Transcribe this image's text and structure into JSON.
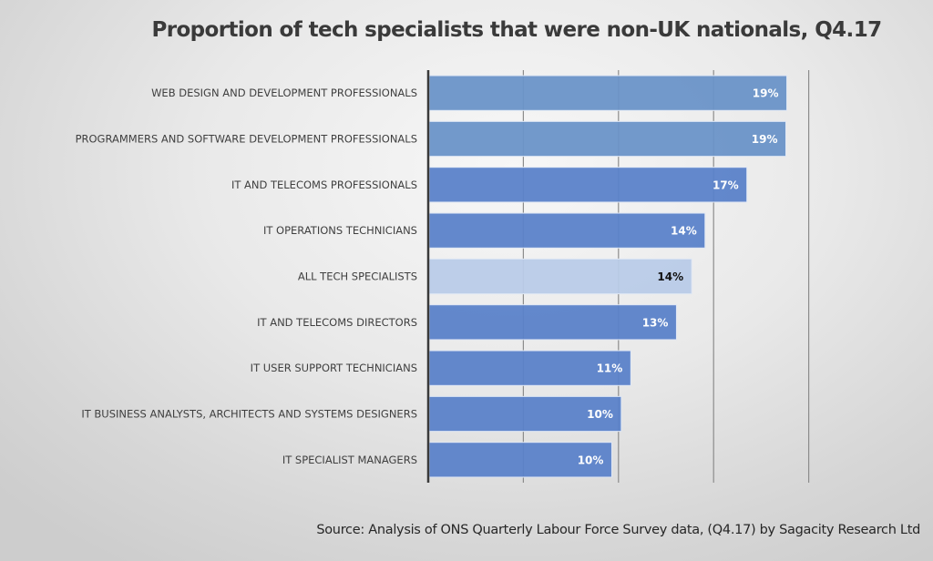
{
  "chart_data": {
    "type": "bar",
    "orientation": "horizontal",
    "title": "Proportion of tech specialists that were non-UK nationals, Q4.17",
    "xlabel": "",
    "ylabel": "",
    "xlim": [
      0,
      25
    ],
    "x_gridlines": [
      5,
      10,
      15,
      20
    ],
    "grid": true,
    "legend": "none",
    "categories": [
      "WEB DESIGN AND DEVELOPMENT PROFESSIONALS",
      "PROGRAMMERS AND SOFTWARE DEVELOPMENT PROFESSIONALS",
      "IT AND TELECOMS PROFESSIONALS",
      "IT OPERATIONS TECHNICIANS",
      "ALL TECH SPECIALISTS",
      "IT AND TELECOMS DIRECTORS",
      "IT USER SUPPORT TECHNICIANS",
      "IT BUSINESS ANALYSTS, ARCHITECTS AND SYSTEMS DESIGNERS",
      "IT SPECIALIST MANAGERS"
    ],
    "values": [
      18.8,
      18.75,
      16.7,
      14.5,
      13.8,
      13.0,
      10.6,
      10.1,
      9.6
    ],
    "data_labels": [
      "19%",
      "19%",
      "17%",
      "14%",
      "14%",
      "13%",
      "11%",
      "10%",
      "10%"
    ],
    "bar_colors": [
      "#6a94c8",
      "#6a94c8",
      "#5b82c9",
      "#5b82c9",
      "#b9cbe8",
      "#5b82c9",
      "#5b82c9",
      "#5b82c9",
      "#5b82c9"
    ],
    "label_colors": [
      "#ffffff",
      "#ffffff",
      "#ffffff",
      "#ffffff",
      "#111111",
      "#ffffff",
      "#ffffff",
      "#ffffff",
      "#ffffff"
    ],
    "highlighted_category": "ALL TECH SPECIALISTS",
    "source": "Source: Analysis of ONS Quarterly Labour Force Survey data, (Q4.17) by Sagacity Research Ltd"
  }
}
